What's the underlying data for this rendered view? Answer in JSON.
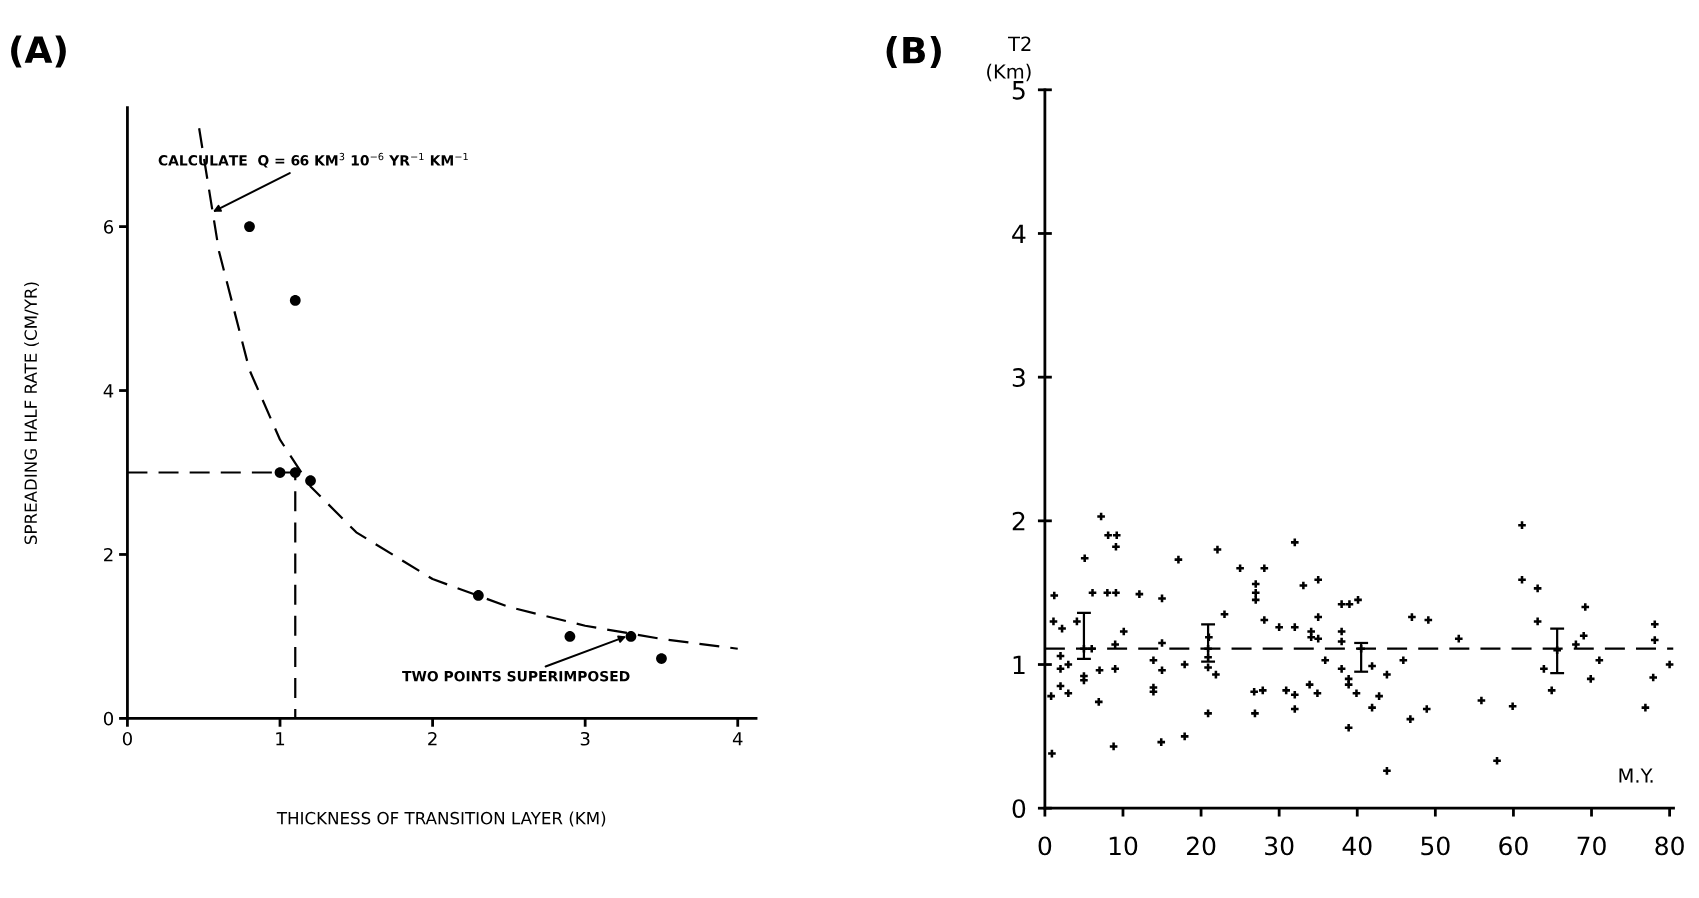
{
  "chart_data": [
    {
      "type": "scatter",
      "title": "(A)",
      "xlabel": "THICKNESS OF TRANSITION LAYER (KM)",
      "ylabel": "SPREADING HALF RATE (CM/YR)",
      "xlim": [
        0,
        4.12
      ],
      "ylim": [
        0,
        7.45
      ],
      "xticks": [
        0,
        1,
        2,
        3,
        4
      ],
      "yticks": [
        0,
        2,
        4,
        6
      ],
      "grid": false,
      "legend": false,
      "series": [
        {
          "type": "scatter",
          "marker": "circle",
          "color": "#000000",
          "x": [
            0.8,
            1.1,
            1.0,
            1.1,
            1.2,
            2.3,
            2.9,
            3.3,
            3.5
          ],
          "values": [
            6.0,
            5.1,
            3.0,
            3.0,
            2.9,
            1.5,
            1.0,
            1.0,
            0.73
          ]
        },
        {
          "type": "line",
          "line_style": "dashed",
          "marker": "none",
          "color": "#000000",
          "x": [
            0.47,
            0.6,
            0.8,
            1.0,
            1.2,
            1.5,
            2.0,
            2.5,
            3.0,
            3.5,
            4.0
          ],
          "values": [
            7.2,
            5.7,
            4.25,
            3.4,
            2.83,
            2.27,
            1.7,
            1.36,
            1.13,
            0.97,
            0.85
          ]
        },
        {
          "type": "line",
          "line_style": "dashed",
          "marker": "none",
          "color": "#000000",
          "x": [
            0,
            1.1,
            1.1
          ],
          "values": [
            3.0,
            3.0,
            0
          ]
        }
      ],
      "annotations": [
        {
          "text": "CALCULATE  Q = 66 KM$^{3}$ 10$^{−6}$ YR$^{−1}$ KM$^{−1}$",
          "x": 0.56,
          "y": 6.18
        },
        {
          "text": "TWO POINTS SUPERIMPOSED",
          "x": 3.27,
          "y": 1.0
        }
      ]
    },
    {
      "type": "scatter",
      "title": "(B)",
      "ylabel": "T2\n(Km)",
      "xlabel": "M.Y.",
      "xlim": [
        0,
        80.5
      ],
      "ylim": [
        0,
        5
      ],
      "xticks": [
        0,
        10,
        20,
        30,
        40,
        50,
        60,
        70,
        80
      ],
      "yticks": [
        0,
        1,
        2,
        3,
        4,
        5
      ],
      "grid": false,
      "legend": false,
      "series": [
        {
          "type": "scatter",
          "marker": "cross",
          "color": "#000000",
          "x": [
            1.2,
            1.1,
            2.2,
            2.0,
            3.0,
            2.0,
            0.8,
            2.0,
            3.0,
            0.9,
            4.1,
            5.0,
            5.0,
            5.1,
            6.1,
            6.0,
            7.2,
            6.9,
            7.0,
            8.1,
            9.2,
            9.1,
            8.0,
            9.1,
            9.0,
            9.0,
            8.8,
            10.1,
            12.1,
            15.0,
            15.0,
            13.9,
            15.0,
            13.9,
            13.9,
            14.9,
            17.1,
            17.9,
            17.9,
            22.1,
            23.0,
            21.0,
            20.9,
            20.9,
            21.9,
            20.9,
            25.0,
            27.0,
            27.0,
            27.0,
            28.1,
            28.1,
            30.0,
            32.0,
            32.0,
            33.1,
            26.8,
            27.9,
            26.9,
            30.9,
            32.0,
            32.0,
            33.9,
            34.1,
            34.1,
            35.0,
            35.0,
            35.0,
            35.9,
            34.9,
            38.0,
            39.0,
            40.1,
            38.0,
            38.0,
            38.0,
            38.9,
            38.9,
            39.9,
            38.9,
            41.9,
            41.9,
            42.8,
            43.8,
            43.8,
            45.9,
            46.8,
            47.0,
            49.1,
            48.9,
            53.0,
            55.9,
            57.9,
            59.9,
            61.1,
            61.1,
            63.1,
            63.1,
            63.9,
            64.9,
            68.0,
            69.0,
            69.2,
            71.0,
            69.9,
            78.1,
            78.1,
            77.9,
            76.9,
            80.0
          ],
          "values": [
            1.48,
            1.3,
            1.25,
            1.06,
            1.0,
            0.97,
            0.78,
            0.85,
            0.8,
            0.38,
            1.3,
            0.92,
            0.89,
            1.74,
            1.5,
            1.11,
            2.03,
            0.74,
            0.96,
            1.9,
            1.9,
            1.82,
            1.5,
            1.5,
            1.14,
            0.97,
            0.43,
            1.23,
            1.49,
            1.46,
            1.15,
            1.03,
            0.96,
            0.84,
            0.81,
            0.46,
            1.73,
            1.0,
            0.5,
            1.8,
            1.35,
            1.19,
            1.05,
            0.98,
            0.93,
            0.66,
            1.67,
            1.56,
            1.5,
            1.45,
            1.67,
            1.31,
            1.26,
            1.26,
            1.85,
            1.55,
            0.81,
            0.82,
            0.66,
            0.82,
            0.79,
            0.69,
            0.86,
            1.23,
            1.19,
            1.59,
            1.33,
            1.18,
            1.03,
            0.8,
            1.42,
            1.42,
            1.45,
            1.23,
            1.16,
            0.97,
            0.9,
            0.86,
            0.8,
            0.56,
            0.99,
            0.7,
            0.78,
            0.93,
            0.26,
            1.03,
            0.62,
            1.33,
            1.31,
            0.69,
            1.18,
            0.75,
            0.33,
            0.71,
            1.97,
            1.59,
            1.53,
            1.3,
            0.97,
            0.82,
            1.14,
            1.2,
            1.4,
            1.03,
            0.9,
            1.28,
            1.17,
            0.91,
            0.7,
            1.0
          ]
        },
        {
          "type": "scatter",
          "marker": "cross",
          "color": "#000000",
          "x": [
            5.0,
            20.9,
            40.5,
            65.6
          ],
          "values": [
            1.11,
            1.11,
            1.11,
            1.1
          ],
          "errors": [
            [
              1.04,
              1.36
            ],
            [
              1.02,
              1.28
            ],
            [
              0.95,
              1.15
            ],
            [
              0.94,
              1.25
            ]
          ]
        }
      ],
      "ref_lines": [
        {
          "axis": "y",
          "value": 1.11,
          "line_style": "dashed",
          "color": "#000000"
        }
      ]
    }
  ]
}
